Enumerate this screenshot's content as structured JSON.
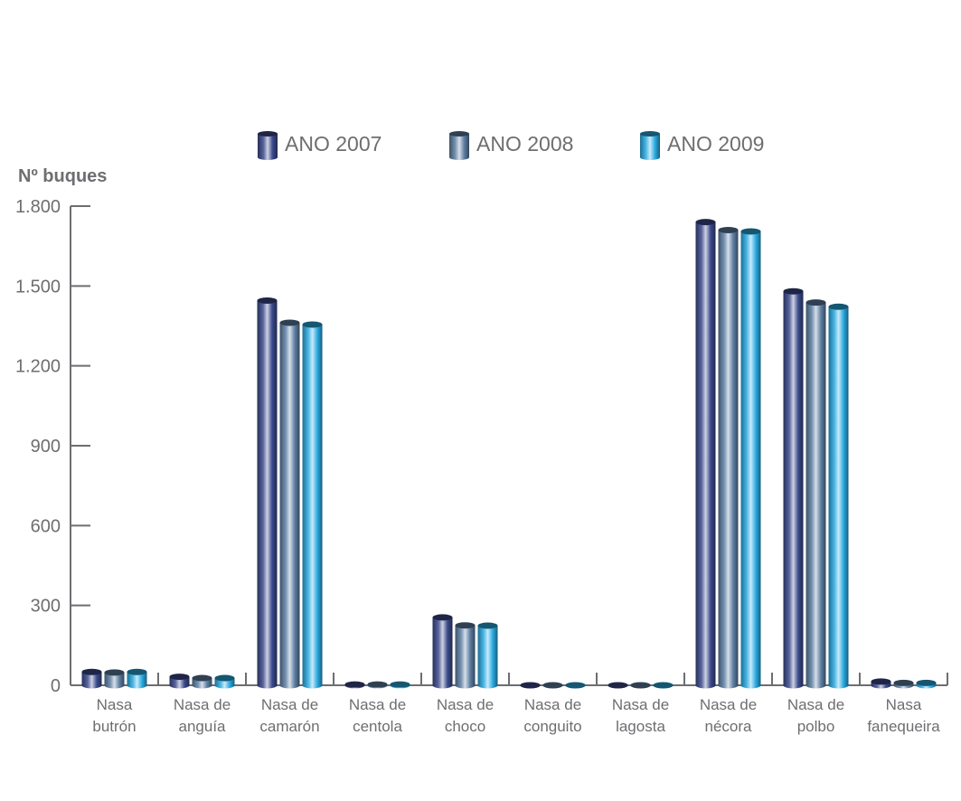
{
  "chart_data": {
    "type": "bar",
    "title": "",
    "xlabel": "",
    "ylabel": "Nº buques",
    "ylim": [
      0,
      1800
    ],
    "yticks": [
      0,
      300,
      600,
      900,
      1200,
      1500,
      1800
    ],
    "ytick_labels": [
      "0",
      "300",
      "600",
      "900",
      "1.200",
      "1.500",
      "1.800"
    ],
    "grid": false,
    "legend_position": "top-center",
    "categories": [
      [
        "Nasa",
        "butrón"
      ],
      [
        "Nasa de",
        "anguía"
      ],
      [
        "Nasa de",
        "camarón"
      ],
      [
        "Nasa de",
        "centola"
      ],
      [
        "Nasa de",
        "choco"
      ],
      [
        "Nasa de",
        "conguito"
      ],
      [
        "Nasa de",
        "lagosta"
      ],
      [
        "Nasa de",
        "nécora"
      ],
      [
        "Nasa de",
        "polbo"
      ],
      [
        "Nasa",
        "fanequeira"
      ]
    ],
    "series": [
      {
        "name": "ANO 2007",
        "color": "#3b4a8c",
        "values": [
          50,
          32,
          1445,
          3,
          255,
          0,
          0,
          1740,
          1480,
          14
        ]
      },
      {
        "name": "ANO 2008",
        "color": "#5e7fa3",
        "values": [
          48,
          27,
          1362,
          3,
          225,
          0,
          0,
          1710,
          1438,
          9
        ]
      },
      {
        "name": "ANO 2009",
        "color": "#29abe2",
        "values": [
          50,
          27,
          1355,
          3,
          224,
          0,
          0,
          1705,
          1422,
          9
        ]
      }
    ]
  }
}
